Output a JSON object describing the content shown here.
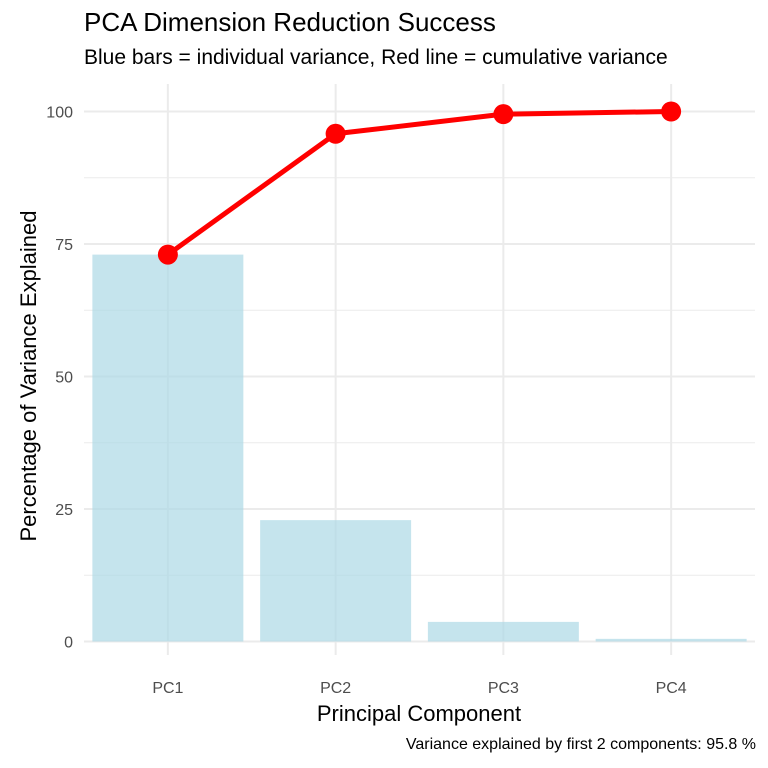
{
  "chart_data": {
    "type": "bar",
    "title": "PCA Dimension Reduction Success",
    "subtitle": "Blue bars = individual variance, Red line = cumulative variance",
    "xlabel": "Principal Component",
    "ylabel": "Percentage of Variance Explained",
    "caption": "Variance explained by first 2 components: 95.8 %",
    "categories": [
      "PC1",
      "PC2",
      "PC3",
      "PC4"
    ],
    "series": [
      {
        "type": "bar",
        "values": [
          73.0,
          22.9,
          3.7,
          0.5
        ],
        "color": "#ADD8E6"
      },
      {
        "type": "line",
        "values": [
          73.0,
          95.8,
          99.5,
          100.0
        ],
        "color": "#FF0000"
      }
    ],
    "ylim": [
      0,
      100
    ],
    "yticks": [
      0,
      25,
      50,
      75,
      100
    ],
    "grid": true,
    "legend": "none"
  }
}
